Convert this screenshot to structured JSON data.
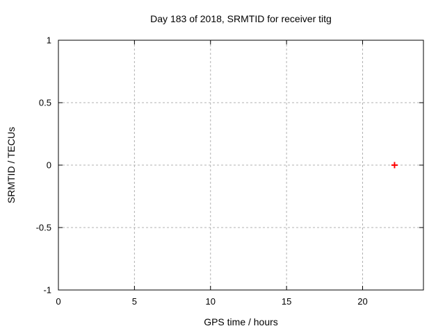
{
  "chart_data": {
    "type": "scatter",
    "title": "Day 183 of 2018, SRMTID for receiver titg",
    "xlabel": "GPS time / hours",
    "ylabel": "SRMTID / TECUs",
    "xlim": [
      0,
      24
    ],
    "ylim": [
      -1,
      1
    ],
    "xticks": [
      0,
      5,
      10,
      15,
      20
    ],
    "xtick_labels": [
      "0",
      "5",
      "10",
      "15",
      "20"
    ],
    "yticks": [
      -1,
      -0.5,
      0,
      0.5,
      1
    ],
    "ytick_labels": [
      "-1",
      "-0.5",
      "0",
      "0.5",
      "1"
    ],
    "grid": true,
    "legend": "none",
    "colors": {
      "background": "#ffffff",
      "border": "#000000",
      "grid": "#b0b0b0",
      "text": "#000000",
      "marker": "#ff0000"
    },
    "series": [
      {
        "marker": "plus",
        "color": "#ff0000",
        "points": [
          {
            "x": 22.1,
            "y": 0.0
          }
        ]
      }
    ]
  }
}
